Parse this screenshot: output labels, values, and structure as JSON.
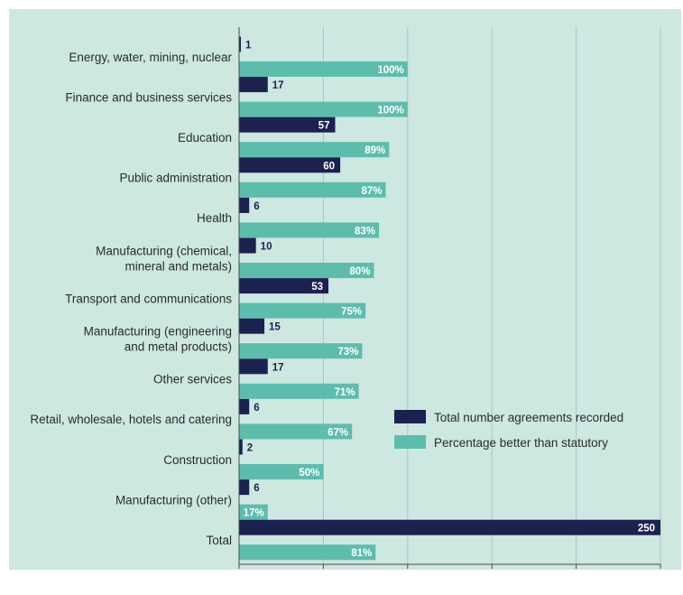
{
  "chart_data": {
    "type": "bar",
    "orientation": "horizontal",
    "categories": [
      "Energy, water, mining, nuclear",
      "Finance and business services",
      "Education",
      "Public administration",
      "Health",
      "Manufacturing (chemical,\nmineral and metals)",
      "Transport and communications",
      "Manufacturing (engineering\nand metal products)",
      "Other services",
      "Retail, wholesale, hotels and catering",
      "Construction",
      "Manufacturing (other)",
      "Total"
    ],
    "series": [
      {
        "name": "Total number agreements recorded",
        "color": "#1c2150",
        "values": [
          1,
          17,
          57,
          60,
          6,
          10,
          53,
          15,
          17,
          6,
          2,
          6,
          250
        ],
        "labels": [
          "1",
          "17",
          "57",
          "60",
          "6",
          "10",
          "53",
          "15",
          "17",
          "6",
          "2",
          "6",
          "250"
        ]
      },
      {
        "name": "Percentage better than statutory",
        "color": "#5dbdad",
        "values": [
          100,
          100,
          89,
          87,
          83,
          80,
          75,
          73,
          71,
          67,
          50,
          17,
          81
        ],
        "labels": [
          "100%",
          "100%",
          "89%",
          "87%",
          "83%",
          "80%",
          "75%",
          "73%",
          "71%",
          "67%",
          "50%",
          "17%",
          "81%"
        ]
      }
    ],
    "xlim": [
      0,
      250
    ],
    "xticks": [
      "0",
      "50",
      "100",
      "150",
      "200",
      "250"
    ],
    "grid": "vertical",
    "legend_position": "right"
  }
}
